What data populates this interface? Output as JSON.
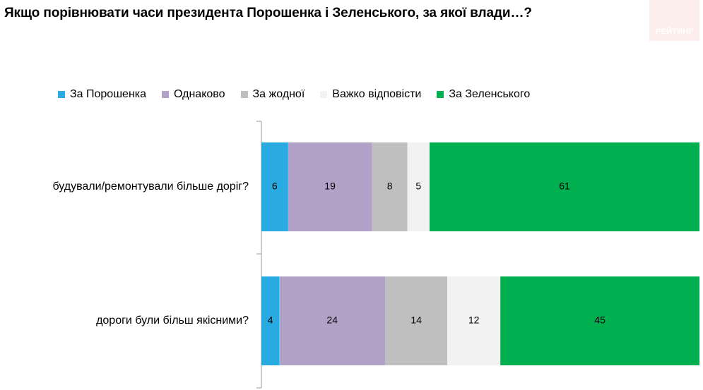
{
  "title": "Якщо порівнювати часи президента Порошенка і Зеленського, за якої влади…?",
  "brand": {
    "label": "РЕЙТИНГ"
  },
  "chart_data": {
    "type": "bar",
    "orientation": "horizontal",
    "stacked": true,
    "categories": [
      "будували/ремонтували більше доріг?",
      "дороги були більш якісними?"
    ],
    "series": [
      {
        "name": "За Порошенка",
        "color": "#29abe2",
        "values": [
          6,
          4
        ]
      },
      {
        "name": "Однаково",
        "color": "#b3a2c7",
        "values": [
          19,
          24
        ]
      },
      {
        "name": "За жодної",
        "color": "#bfbfbf",
        "values": [
          8,
          14
        ]
      },
      {
        "name": "Важко відповісти",
        "color": "#f2f2f2",
        "values": [
          5,
          12
        ]
      },
      {
        "name": "За Зеленського",
        "color": "#00b050",
        "values": [
          61,
          45
        ]
      }
    ],
    "xlim": [
      0,
      99
    ],
    "legend": "top",
    "grid": false
  }
}
